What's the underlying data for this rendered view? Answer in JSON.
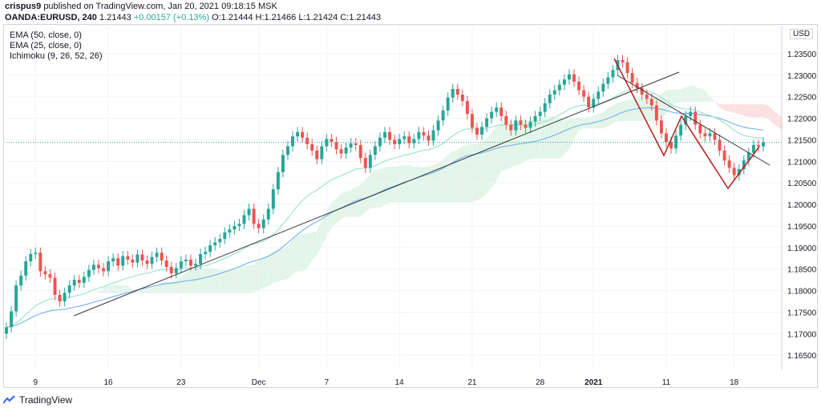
{
  "header": {
    "user": "crispus9",
    "published": "published on TradingView.com, Jan 20, 2021 09:18:15 MSK",
    "symbol": "OANDA:EURUSD, 240",
    "last": "1.21443",
    "change": "+0.00157 (+0.13%)",
    "o": "O:1.21444",
    "h": "H:1.21466",
    "l": "L:1.21424",
    "c": "C:1.21443"
  },
  "indicators": [
    "EMA (50, close, 0)",
    "EMA (25, close, 0)",
    "Ichimoku (9, 26, 52, 26)"
  ],
  "currency": "USD",
  "footer": {
    "brand": "TradingView"
  },
  "colors": {
    "up": "#26a69a",
    "down": "#ef5350",
    "ema50": "#7cb5ec",
    "ema25": "#9fe3d0",
    "cloud_green": "#e3f5e8",
    "cloud_red": "#fbe0e0",
    "wave": "#b71c1c"
  },
  "chart_data": {
    "type": "candlestick",
    "yticks": [
      "1.16500",
      "1.17000",
      "1.17500",
      "1.18000",
      "1.18500",
      "1.19000",
      "1.19500",
      "1.20000",
      "1.20500",
      "1.21000",
      "1.21500",
      "1.22000",
      "1.22500",
      "1.23000",
      "1.23500"
    ],
    "ylim": [
      1.1615,
      1.2415
    ],
    "xticks": [
      "9",
      "16",
      "23",
      "Dec",
      "7",
      "14",
      "21",
      "28",
      "2021",
      "11",
      "18"
    ],
    "xtick_index": [
      6,
      21,
      36,
      52,
      66,
      81,
      96,
      110,
      121,
      136,
      150
    ],
    "last_price": 1.21443,
    "close": [
      1.1715,
      1.1752,
      1.1812,
      1.1835,
      1.1868,
      1.1885,
      1.1888,
      1.1845,
      1.1838,
      1.183,
      1.179,
      1.1775,
      1.1795,
      1.1812,
      1.1825,
      1.1818,
      1.1832,
      1.1848,
      1.186,
      1.1852,
      1.1845,
      1.1868,
      1.1875,
      1.1858,
      1.188,
      1.1872,
      1.1865,
      1.1884,
      1.187,
      1.1862,
      1.1878,
      1.1888,
      1.187,
      1.1855,
      1.184,
      1.1852,
      1.1868,
      1.1872,
      1.1858,
      1.1862,
      1.1885,
      1.189,
      1.1905,
      1.1912,
      1.192,
      1.1935,
      1.1942,
      1.195,
      1.1955,
      1.1975,
      1.199,
      1.1955,
      1.1945,
      1.1965,
      1.199,
      1.2035,
      1.2075,
      1.2115,
      1.2135,
      1.2158,
      1.2168,
      1.2155,
      1.214,
      1.2125,
      1.2105,
      1.2135,
      1.2152,
      1.2145,
      1.2128,
      1.2118,
      1.2132,
      1.2142,
      1.2138,
      1.2108,
      1.2085,
      1.2115,
      1.2135,
      1.2155,
      1.2168,
      1.215,
      1.214,
      1.2152,
      1.2158,
      1.2142,
      1.2152,
      1.2168,
      1.216,
      1.2148,
      1.2172,
      1.2195,
      1.2218,
      1.2248,
      1.2268,
      1.2255,
      1.224,
      1.221,
      1.2178,
      1.2162,
      1.218,
      1.22,
      1.2215,
      1.2225,
      1.2205,
      1.2185,
      1.2172,
      1.2195,
      1.2185,
      1.2178,
      1.2192,
      1.2205,
      1.2215,
      1.2235,
      1.2255,
      1.2265,
      1.2278,
      1.229,
      1.2302,
      1.2285,
      1.2265,
      1.225,
      1.2225,
      1.2245,
      1.2262,
      1.228,
      1.2295,
      1.2312,
      1.2335,
      1.233,
      1.2305,
      1.2282,
      1.227,
      1.2255,
      1.2245,
      1.223,
      1.2195,
      1.2165,
      1.2145,
      1.213,
      1.216,
      1.2185,
      1.2205,
      1.2215,
      1.2185,
      1.2165,
      1.2158,
      1.2165,
      1.215,
      1.2125,
      1.2102,
      1.2085,
      1.2068,
      1.2082,
      1.2102,
      1.212,
      1.2138,
      1.2135,
      1.2144
    ]
  }
}
